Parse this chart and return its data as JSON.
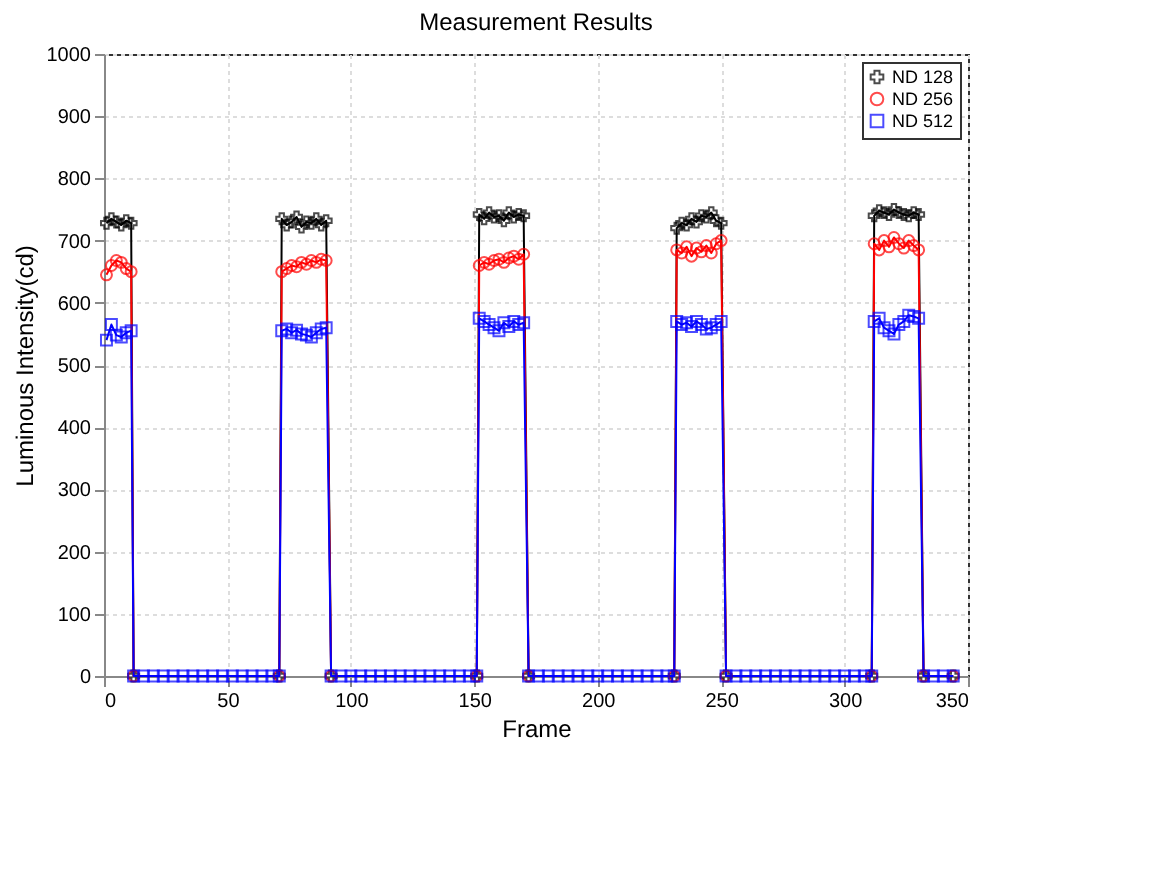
{
  "chart_data": {
    "type": "line",
    "title": "Measurement Results",
    "xlabel": "Frame",
    "ylabel": "Luminous Intensity(cd)",
    "x": [
      1,
      3,
      5,
      7,
      9,
      11,
      12,
      16,
      20,
      24,
      28,
      32,
      36,
      40,
      44,
      48,
      52,
      56,
      60,
      64,
      68,
      71,
      72,
      74,
      76,
      78,
      80,
      82,
      84,
      86,
      88,
      90,
      92,
      96,
      100,
      104,
      108,
      112,
      116,
      120,
      124,
      128,
      132,
      136,
      140,
      144,
      148,
      151,
      152,
      154,
      156,
      158,
      160,
      162,
      164,
      166,
      168,
      170,
      172,
      176,
      180,
      184,
      188,
      192,
      196,
      200,
      204,
      208,
      212,
      216,
      220,
      224,
      228,
      231,
      232,
      234,
      236,
      238,
      240,
      242,
      244,
      246,
      248,
      250,
      252,
      256,
      260,
      264,
      268,
      272,
      276,
      280,
      284,
      288,
      292,
      296,
      300,
      304,
      308,
      311,
      312,
      314,
      316,
      318,
      320,
      322,
      324,
      326,
      328,
      330,
      332,
      336,
      340,
      344
    ],
    "series": [
      {
        "name": "ND 128",
        "color": "#000000",
        "marker": "cross",
        "x": [
          1,
          3,
          5,
          7,
          9,
          11,
          12,
          71,
          72,
          74,
          76,
          78,
          80,
          82,
          84,
          86,
          88,
          90,
          92,
          151,
          152,
          154,
          156,
          158,
          160,
          162,
          164,
          166,
          168,
          170,
          172,
          231,
          232,
          234,
          236,
          238,
          240,
          242,
          244,
          246,
          248,
          250,
          252,
          311,
          312,
          314,
          316,
          318,
          320,
          322,
          324,
          326,
          328,
          330,
          332,
          344
        ],
        "values": [
          728,
          735,
          730,
          725,
          732,
          728,
          0,
          0,
          735,
          725,
          730,
          738,
          722,
          730,
          728,
          735,
          725,
          732,
          0,
          0,
          742,
          735,
          745,
          738,
          740,
          732,
          745,
          738,
          742,
          740,
          0,
          0,
          720,
          728,
          725,
          735,
          730,
          740,
          738,
          745,
          732,
          728,
          0,
          0,
          740,
          748,
          745,
          742,
          750,
          745,
          742,
          740,
          745,
          742,
          0,
          0
        ]
      },
      {
        "name": "ND 256",
        "color": "#ff0000",
        "marker": "circle",
        "x": [
          1,
          3,
          5,
          7,
          9,
          11,
          12,
          71,
          72,
          74,
          76,
          78,
          80,
          82,
          84,
          86,
          88,
          90,
          92,
          151,
          152,
          154,
          156,
          158,
          160,
          162,
          164,
          166,
          168,
          170,
          172,
          231,
          232,
          234,
          236,
          238,
          240,
          242,
          244,
          246,
          248,
          250,
          252,
          311,
          312,
          314,
          316,
          318,
          320,
          322,
          324,
          326,
          328,
          330,
          332,
          344
        ],
        "values": [
          645,
          660,
          668,
          665,
          655,
          650,
          0,
          0,
          650,
          655,
          660,
          658,
          665,
          662,
          668,
          665,
          670,
          668,
          0,
          0,
          660,
          665,
          662,
          668,
          670,
          665,
          672,
          675,
          670,
          678,
          0,
          0,
          685,
          680,
          690,
          675,
          688,
          682,
          692,
          680,
          695,
          700,
          0,
          0,
          695,
          685,
          700,
          690,
          705,
          695,
          688,
          700,
          692,
          685,
          0,
          0
        ]
      },
      {
        "name": "ND 512",
        "color": "#0000ff",
        "marker": "square",
        "values": [
          540,
          565,
          548,
          545,
          552,
          555,
          0,
          0,
          0,
          0,
          0,
          0,
          0,
          0,
          0,
          0,
          0,
          0,
          0,
          0,
          0,
          0,
          555,
          558,
          552,
          556,
          550,
          548,
          545,
          552,
          558,
          560,
          0,
          0,
          0,
          0,
          0,
          0,
          0,
          0,
          0,
          0,
          0,
          0,
          0,
          0,
          0,
          0,
          575,
          570,
          565,
          560,
          555,
          568,
          562,
          570,
          565,
          568,
          0,
          0,
          0,
          0,
          0,
          0,
          0,
          0,
          0,
          0,
          0,
          0,
          0,
          0,
          0,
          0,
          570,
          565,
          568,
          562,
          570,
          565,
          558,
          560,
          565,
          570,
          0,
          0,
          0,
          0,
          0,
          0,
          0,
          0,
          0,
          0,
          0,
          0,
          0,
          0,
          0,
          0,
          570,
          575,
          560,
          555,
          550,
          565,
          570,
          580,
          578,
          575,
          0,
          0,
          0,
          0
        ]
      }
    ],
    "xlim": [
      0,
      350
    ],
    "xticks": [
      0,
      50,
      100,
      150,
      200,
      250,
      300,
      350
    ],
    "ylim": [
      0,
      1000
    ],
    "yticks": [
      0,
      100,
      200,
      300,
      400,
      500,
      600,
      700,
      800,
      900,
      1000
    ],
    "grid": true,
    "legend": "top right"
  }
}
